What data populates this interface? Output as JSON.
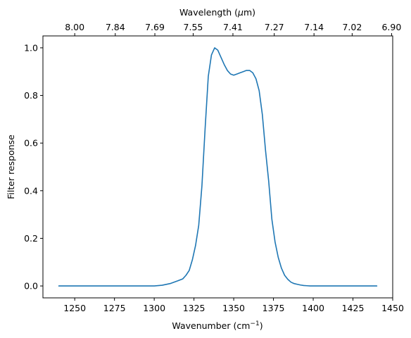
{
  "chart_data": {
    "type": "line",
    "xlabel": "Wavenumber (cm",
    "xlabel_sup": "−1",
    "xlabel_end": ")",
    "ylabel": "Filter response",
    "top_xlabel": "Wavelength (",
    "top_xlabel_mu": "μ",
    "top_xlabel_end": "m)",
    "xlim": [
      1230,
      1450
    ],
    "ylim": [
      -0.05,
      1.05
    ],
    "x_ticks": [
      1250,
      1275,
      1300,
      1325,
      1350,
      1375,
      1400,
      1425,
      1450
    ],
    "y_ticks": [
      0.0,
      0.2,
      0.4,
      0.6,
      0.8,
      1.0
    ],
    "y_tick_labels": [
      "0.0",
      "0.2",
      "0.4",
      "0.6",
      "0.8",
      "1.0"
    ],
    "top_ticks": [
      {
        "wavenumber": 1250.0,
        "label": "8.00"
      },
      {
        "wavenumber": 1275.5,
        "label": "7.84"
      },
      {
        "wavenumber": 1300.4,
        "label": "7.69"
      },
      {
        "wavenumber": 1324.5,
        "label": "7.55"
      },
      {
        "wavenumber": 1349.5,
        "label": "7.41"
      },
      {
        "wavenumber": 1375.5,
        "label": "7.27"
      },
      {
        "wavenumber": 1400.5,
        "label": "7.14"
      },
      {
        "wavenumber": 1424.5,
        "label": "7.02"
      },
      {
        "wavenumber": 1449.3,
        "label": "6.90"
      }
    ],
    "line_color": "#1f77b4",
    "x": [
      1240,
      1280,
      1300,
      1305,
      1310,
      1315,
      1318,
      1320,
      1322,
      1324,
      1326,
      1328,
      1330,
      1332,
      1334,
      1336,
      1338,
      1340,
      1342,
      1344,
      1346,
      1348,
      1350,
      1352,
      1354,
      1356,
      1358,
      1360,
      1362,
      1364,
      1366,
      1368,
      1370,
      1372,
      1374,
      1376,
      1378,
      1380,
      1382,
      1384,
      1386,
      1388,
      1390,
      1392,
      1394,
      1396,
      1398,
      1400,
      1410,
      1420,
      1440
    ],
    "y": [
      0.0,
      0.0,
      0.0,
      0.003,
      0.01,
      0.022,
      0.03,
      0.045,
      0.065,
      0.11,
      0.17,
      0.255,
      0.42,
      0.66,
      0.88,
      0.97,
      1.0,
      0.99,
      0.96,
      0.93,
      0.905,
      0.89,
      0.885,
      0.89,
      0.895,
      0.9,
      0.905,
      0.905,
      0.895,
      0.87,
      0.82,
      0.72,
      0.57,
      0.44,
      0.28,
      0.185,
      0.12,
      0.075,
      0.045,
      0.028,
      0.016,
      0.01,
      0.007,
      0.004,
      0.002,
      0.001,
      0.0,
      0.0,
      0.0,
      0.0,
      0.0
    ]
  }
}
